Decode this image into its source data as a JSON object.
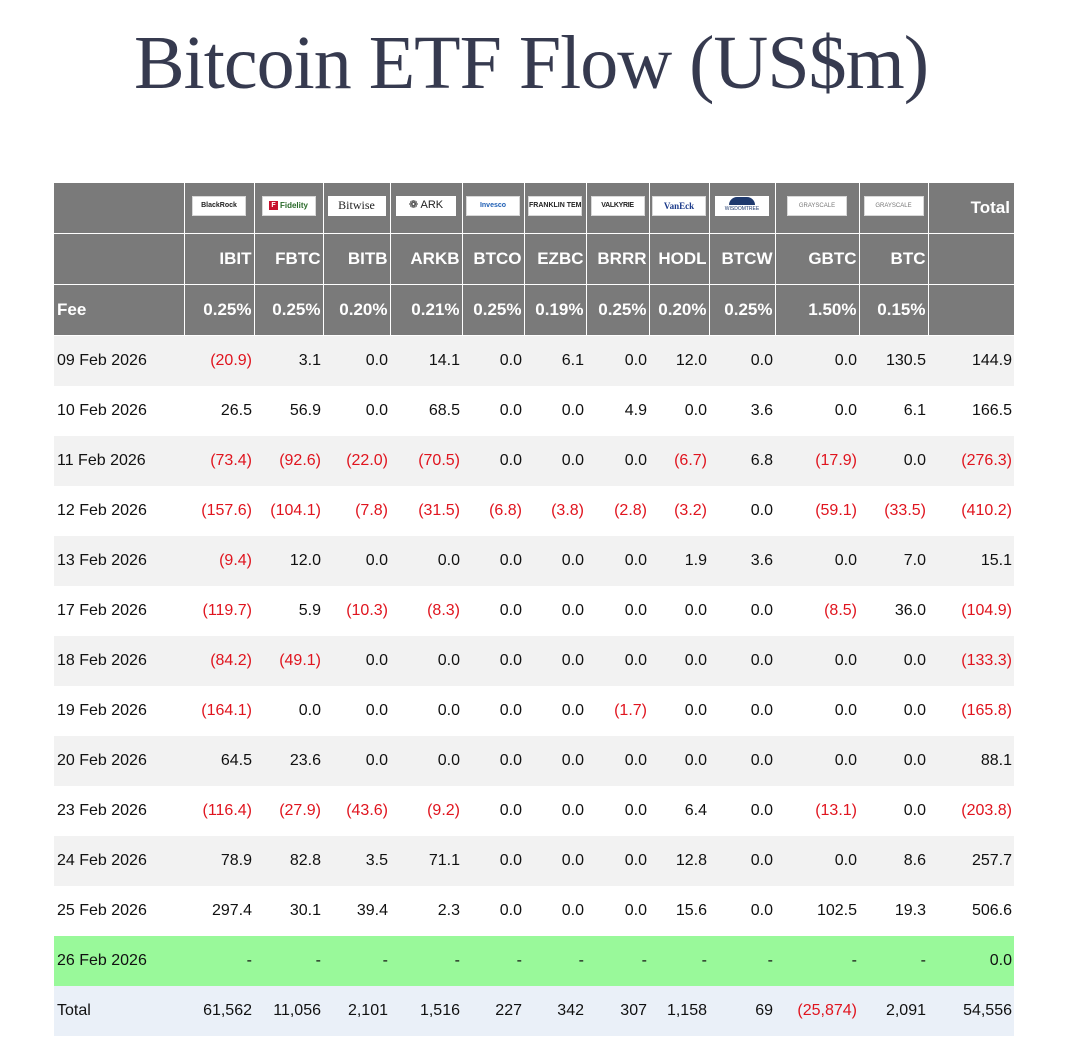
{
  "title": "Bitcoin ETF Flow (US$m)",
  "header": {
    "total_label": "Total",
    "fee_label": "Fee"
  },
  "funds": [
    {
      "logo_icon": "blackrock-logo",
      "logo_text": "BlackRock",
      "ticker": "IBIT",
      "fee": "0.25%"
    },
    {
      "logo_icon": "fidelity-logo",
      "logo_text": "Fidelity",
      "ticker": "FBTC",
      "fee": "0.25%"
    },
    {
      "logo_icon": "bitwise-logo",
      "logo_text": "Bitwise",
      "ticker": "BITB",
      "fee": "0.20%"
    },
    {
      "logo_icon": "ark-invest-logo",
      "logo_text": "ARK",
      "ticker": "ARKB",
      "fee": "0.21%"
    },
    {
      "logo_icon": "invesco-logo",
      "logo_text": "Invesco",
      "ticker": "BTCO",
      "fee": "0.25%"
    },
    {
      "logo_icon": "franklin-templeton-logo",
      "logo_text": "FRANKLIN TEMPLETON",
      "ticker": "EZBC",
      "fee": "0.19%"
    },
    {
      "logo_icon": "valkyrie-logo",
      "logo_text": "VALKYRIE",
      "ticker": "BRRR",
      "fee": "0.25%"
    },
    {
      "logo_icon": "vaneck-logo",
      "logo_text": "VanEck",
      "ticker": "HODL",
      "fee": "0.20%"
    },
    {
      "logo_icon": "wisdomtree-logo",
      "logo_text": "WISDOMTREE",
      "ticker": "BTCW",
      "fee": "0.25%"
    },
    {
      "logo_icon": "grayscale-logo",
      "logo_text": "GRAYSCALE",
      "ticker": "GBTC",
      "fee": "1.50%"
    },
    {
      "logo_icon": "grayscale-logo",
      "logo_text": "GRAYSCALE",
      "ticker": "BTC",
      "fee": "0.15%"
    }
  ],
  "chart_data": {
    "type": "table",
    "title": "Bitcoin ETF Flow (US$m)",
    "columns": [
      "IBIT",
      "FBTC",
      "BITB",
      "ARKB",
      "BTCO",
      "EZBC",
      "BRRR",
      "HODL",
      "BTCW",
      "GBTC",
      "BTC",
      "Total"
    ],
    "rows": [
      {
        "date": "09 Feb 2026",
        "values": [
          "(20.9)",
          "3.1",
          "0.0",
          "14.1",
          "0.0",
          "6.1",
          "0.0",
          "12.0",
          "0.0",
          "0.0",
          "130.5",
          "144.9"
        ]
      },
      {
        "date": "10 Feb 2026",
        "values": [
          "26.5",
          "56.9",
          "0.0",
          "68.5",
          "0.0",
          "0.0",
          "4.9",
          "0.0",
          "3.6",
          "0.0",
          "6.1",
          "166.5"
        ]
      },
      {
        "date": "11 Feb 2026",
        "values": [
          "(73.4)",
          "(92.6)",
          "(22.0)",
          "(70.5)",
          "0.0",
          "0.0",
          "0.0",
          "(6.7)",
          "6.8",
          "(17.9)",
          "0.0",
          "(276.3)"
        ]
      },
      {
        "date": "12 Feb 2026",
        "values": [
          "(157.6)",
          "(104.1)",
          "(7.8)",
          "(31.5)",
          "(6.8)",
          "(3.8)",
          "(2.8)",
          "(3.2)",
          "0.0",
          "(59.1)",
          "(33.5)",
          "(410.2)"
        ]
      },
      {
        "date": "13 Feb 2026",
        "values": [
          "(9.4)",
          "12.0",
          "0.0",
          "0.0",
          "0.0",
          "0.0",
          "0.0",
          "1.9",
          "3.6",
          "0.0",
          "7.0",
          "15.1"
        ]
      },
      {
        "date": "17 Feb 2026",
        "values": [
          "(119.7)",
          "5.9",
          "(10.3)",
          "(8.3)",
          "0.0",
          "0.0",
          "0.0",
          "0.0",
          "0.0",
          "(8.5)",
          "36.0",
          "(104.9)"
        ]
      },
      {
        "date": "18 Feb 2026",
        "values": [
          "(84.2)",
          "(49.1)",
          "0.0",
          "0.0",
          "0.0",
          "0.0",
          "0.0",
          "0.0",
          "0.0",
          "0.0",
          "0.0",
          "(133.3)"
        ]
      },
      {
        "date": "19 Feb 2026",
        "values": [
          "(164.1)",
          "0.0",
          "0.0",
          "0.0",
          "0.0",
          "0.0",
          "(1.7)",
          "0.0",
          "0.0",
          "0.0",
          "0.0",
          "(165.8)"
        ]
      },
      {
        "date": "20 Feb 2026",
        "values": [
          "64.5",
          "23.6",
          "0.0",
          "0.0",
          "0.0",
          "0.0",
          "0.0",
          "0.0",
          "0.0",
          "0.0",
          "0.0",
          "88.1"
        ]
      },
      {
        "date": "23 Feb 2026",
        "values": [
          "(116.4)",
          "(27.9)",
          "(43.6)",
          "(9.2)",
          "0.0",
          "0.0",
          "0.0",
          "6.4",
          "0.0",
          "(13.1)",
          "0.0",
          "(203.8)"
        ]
      },
      {
        "date": "24 Feb 2026",
        "values": [
          "78.9",
          "82.8",
          "3.5",
          "71.1",
          "0.0",
          "0.0",
          "0.0",
          "12.8",
          "0.0",
          "0.0",
          "8.6",
          "257.7"
        ]
      },
      {
        "date": "25 Feb 2026",
        "values": [
          "297.4",
          "30.1",
          "39.4",
          "2.3",
          "0.0",
          "0.0",
          "0.0",
          "15.6",
          "0.0",
          "102.5",
          "19.3",
          "506.6"
        ]
      },
      {
        "date": "26 Feb 2026",
        "values": [
          "-",
          "-",
          "-",
          "-",
          "-",
          "-",
          "-",
          "-",
          "-",
          "-",
          "-",
          "0.0"
        ],
        "highlight": true
      },
      {
        "date": "Total",
        "values": [
          "61,562",
          "11,056",
          "2,101",
          "1,516",
          "227",
          "342",
          "307",
          "1,158",
          "69",
          "(25,874)",
          "2,091",
          "54,556"
        ],
        "total": true
      }
    ],
    "colors": {
      "header_bg": "#7a7a7a",
      "negative": "#e0141e",
      "today_bg": "#99f99a",
      "total_bg": "#eaf0f8",
      "stripe_bg": "#f2f2f2"
    }
  }
}
